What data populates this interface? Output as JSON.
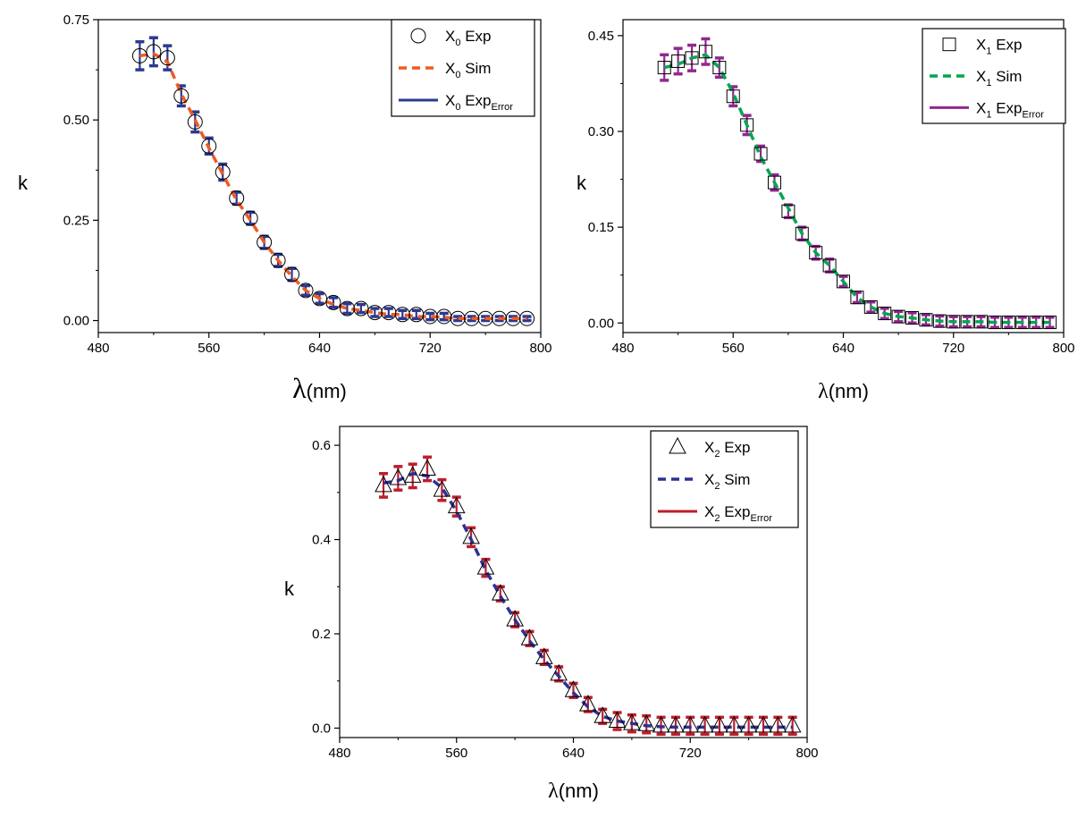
{
  "chart_data": [
    {
      "type": "scatter",
      "panel": "X0",
      "xlabel_symbol": "λ",
      "xlabel_unit": "(nm)",
      "ylabel": "k",
      "xlim": [
        480,
        800
      ],
      "ylim": [
        -0.03,
        0.75
      ],
      "xticks": [
        "480",
        "560",
        "640",
        "720",
        "800"
      ],
      "xtick_values": [
        480,
        560,
        640,
        720,
        800
      ],
      "yticks": [
        "0.00",
        "0.25",
        "0.50",
        "0.75"
      ],
      "ytick_values": [
        0,
        0.25,
        0.5,
        0.75
      ],
      "marker": "circle",
      "exp_color": "#000000",
      "sim_color": "#f05a22",
      "err_color": "#2b3990",
      "legend": {
        "placement": "top-right",
        "entries": [
          {
            "prefix": "X",
            "sub": "0",
            "label": "Exp",
            "label_sub": ""
          },
          {
            "prefix": "X",
            "sub": "0",
            "label": "Sim",
            "label_sub": ""
          },
          {
            "prefix": "X",
            "sub": "0",
            "label": "Exp",
            "label_sub": "Error"
          }
        ]
      },
      "x": [
        510,
        520,
        530,
        540,
        550,
        560,
        570,
        580,
        590,
        600,
        610,
        620,
        630,
        640,
        650,
        660,
        670,
        680,
        690,
        700,
        710,
        720,
        730,
        740,
        750,
        760,
        770,
        780,
        790
      ],
      "exp": [
        0.66,
        0.67,
        0.655,
        0.56,
        0.495,
        0.435,
        0.37,
        0.305,
        0.255,
        0.195,
        0.15,
        0.115,
        0.075,
        0.055,
        0.045,
        0.03,
        0.03,
        0.02,
        0.02,
        0.015,
        0.015,
        0.01,
        0.01,
        0.005,
        0.005,
        0.005,
        0.005,
        0.005,
        0.005
      ],
      "sim": [
        0.66,
        0.665,
        0.645,
        0.565,
        0.5,
        0.43,
        0.365,
        0.3,
        0.25,
        0.195,
        0.15,
        0.11,
        0.075,
        0.055,
        0.04,
        0.03,
        0.025,
        0.02,
        0.015,
        0.015,
        0.01,
        0.01,
        0.008,
        0.005,
        0.005,
        0.005,
        0.005,
        0.005,
        0.005
      ],
      "err": [
        0.035,
        0.035,
        0.03,
        0.025,
        0.025,
        0.02,
        0.02,
        0.015,
        0.015,
        0.015,
        0.015,
        0.015,
        0.012,
        0.012,
        0.012,
        0.012,
        0.01,
        0.01,
        0.01,
        0.01,
        0.01,
        0.008,
        0.008,
        0.005,
        0.005,
        0.005,
        0.005,
        0.005,
        0.005
      ]
    },
    {
      "type": "scatter",
      "panel": "X1",
      "xlabel_symbol": "λ",
      "xlabel_unit": "(nm)",
      "ylabel": "k",
      "xlim": [
        480,
        800
      ],
      "ylim": [
        -0.015,
        0.475
      ],
      "xticks": [
        "480",
        "560",
        "640",
        "720",
        "800"
      ],
      "xtick_values": [
        480,
        560,
        640,
        720,
        800
      ],
      "yticks": [
        "0.00",
        "0.15",
        "0.30",
        "0.45"
      ],
      "ytick_values": [
        0,
        0.15,
        0.3,
        0.45
      ],
      "marker": "square",
      "exp_color": "#000000",
      "sim_color": "#00a651",
      "err_color": "#92278f",
      "legend": {
        "placement": "top-right",
        "entries": [
          {
            "prefix": "X",
            "sub": "1",
            "label": "Exp",
            "label_sub": ""
          },
          {
            "prefix": "X",
            "sub": "1",
            "label": "Sim",
            "label_sub": ""
          },
          {
            "prefix": "X",
            "sub": "1",
            "label": "Exp",
            "label_sub": "Error"
          }
        ]
      },
      "x": [
        510,
        520,
        530,
        540,
        550,
        560,
        570,
        580,
        590,
        600,
        610,
        620,
        630,
        640,
        650,
        660,
        670,
        680,
        690,
        700,
        710,
        720,
        730,
        740,
        750,
        760,
        770,
        780,
        790
      ],
      "exp": [
        0.4,
        0.41,
        0.415,
        0.425,
        0.4,
        0.355,
        0.31,
        0.265,
        0.22,
        0.175,
        0.14,
        0.11,
        0.09,
        0.065,
        0.04,
        0.025,
        0.015,
        0.01,
        0.008,
        0.005,
        0.003,
        0.002,
        0.002,
        0.002,
        0.001,
        0.001,
        0.001,
        0.001,
        0.001
      ],
      "sim": [
        0.4,
        0.405,
        0.415,
        0.42,
        0.4,
        0.36,
        0.31,
        0.26,
        0.22,
        0.18,
        0.14,
        0.11,
        0.09,
        0.065,
        0.04,
        0.025,
        0.015,
        0.01,
        0.008,
        0.005,
        0.003,
        0.002,
        0.002,
        0.002,
        0.001,
        0.001,
        0.001,
        0.001,
        0.001
      ],
      "err": [
        0.02,
        0.02,
        0.02,
        0.02,
        0.015,
        0.015,
        0.015,
        0.012,
        0.012,
        0.01,
        0.01,
        0.01,
        0.01,
        0.008,
        0.008,
        0.008,
        0.008,
        0.008,
        0.008,
        0.008,
        0.008,
        0.008,
        0.008,
        0.008,
        0.008,
        0.008,
        0.008,
        0.008,
        0.008
      ]
    },
    {
      "type": "scatter",
      "panel": "X2",
      "xlabel_symbol": "λ",
      "xlabel_unit": "(nm)",
      "ylabel": "k",
      "xlim": [
        480,
        800
      ],
      "ylim": [
        -0.02,
        0.64
      ],
      "xticks": [
        "480",
        "560",
        "640",
        "720",
        "800"
      ],
      "xtick_values": [
        480,
        560,
        640,
        720,
        800
      ],
      "yticks": [
        "0.0",
        "0.2",
        "0.4",
        "0.6"
      ],
      "ytick_values": [
        0,
        0.2,
        0.4,
        0.6
      ],
      "marker": "triangle",
      "exp_color": "#000000",
      "sim_color": "#2e3192",
      "err_color": "#be1e2d",
      "legend": {
        "placement": "top-right",
        "entries": [
          {
            "prefix": "X",
            "sub": "2",
            "label": "Exp",
            "label_sub": ""
          },
          {
            "prefix": "X",
            "sub": "2",
            "label": "Sim",
            "label_sub": ""
          },
          {
            "prefix": "X",
            "sub": "2",
            "label": "Exp",
            "label_sub": "Error"
          }
        ]
      },
      "x": [
        510,
        520,
        530,
        540,
        550,
        560,
        570,
        580,
        590,
        600,
        610,
        620,
        630,
        640,
        650,
        660,
        670,
        680,
        690,
        700,
        710,
        720,
        730,
        740,
        750,
        760,
        770,
        780,
        790
      ],
      "exp": [
        0.515,
        0.53,
        0.535,
        0.55,
        0.505,
        0.47,
        0.405,
        0.34,
        0.285,
        0.23,
        0.19,
        0.15,
        0.115,
        0.08,
        0.05,
        0.025,
        0.015,
        0.01,
        0.008,
        0.005,
        0.005,
        0.005,
        0.005,
        0.005,
        0.005,
        0.005,
        0.005,
        0.005,
        0.005
      ],
      "sim": [
        0.52,
        0.525,
        0.54,
        0.535,
        0.51,
        0.46,
        0.4,
        0.335,
        0.28,
        0.23,
        0.185,
        0.145,
        0.11,
        0.075,
        0.045,
        0.025,
        0.015,
        0.01,
        0.005,
        0.003,
        0.002,
        0.002,
        0.002,
        0.002,
        0.002,
        0.002,
        0.002,
        0.002,
        0.002
      ],
      "err": [
        0.025,
        0.025,
        0.025,
        0.025,
        0.022,
        0.02,
        0.02,
        0.018,
        0.015,
        0.015,
        0.015,
        0.015,
        0.015,
        0.015,
        0.015,
        0.015,
        0.018,
        0.018,
        0.018,
        0.018,
        0.018,
        0.018,
        0.018,
        0.018,
        0.018,
        0.018,
        0.018,
        0.018,
        0.018
      ]
    }
  ]
}
